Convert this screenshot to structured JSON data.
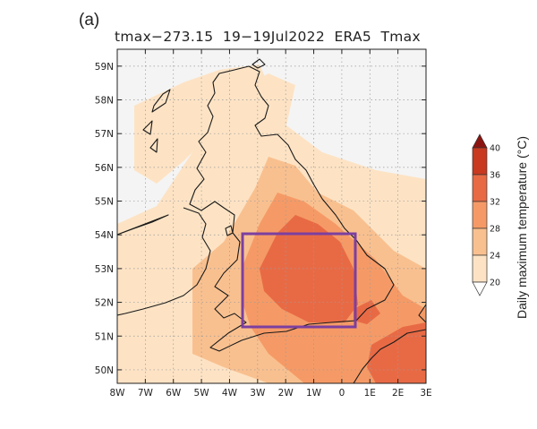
{
  "panel_label": "(a)",
  "title": "tmax−273.15  19−19Jul2022  ERA5  Tmax",
  "map": {
    "lon_ticks": [
      "8W",
      "7W",
      "6W",
      "5W",
      "4W",
      "3W",
      "2W",
      "1W",
      "0",
      "1E",
      "2E",
      "3E"
    ],
    "lat_ticks": [
      "59N",
      "58N",
      "57N",
      "56N",
      "55N",
      "54N",
      "53N",
      "52N",
      "51N",
      "50N"
    ],
    "lon_range": [
      -8,
      3
    ],
    "lat_range": [
      49.6,
      59.5
    ],
    "grid": "dotted"
  },
  "highlight_box": {
    "lon": [
      -3.5,
      0.6
    ],
    "lat": [
      51.2,
      54.0
    ],
    "color": "#7b3fa0"
  },
  "colorbar": {
    "label": "Daily maximum temperature (°C)",
    "ticks": [
      "20",
      "24",
      "28",
      "32",
      "36",
      "40"
    ],
    "colors": [
      "#ffffff",
      "#fde3c4",
      "#f9c08f",
      "#f59a66",
      "#e86a45",
      "#c8391f",
      "#8c1410"
    ],
    "extend": "both"
  }
}
